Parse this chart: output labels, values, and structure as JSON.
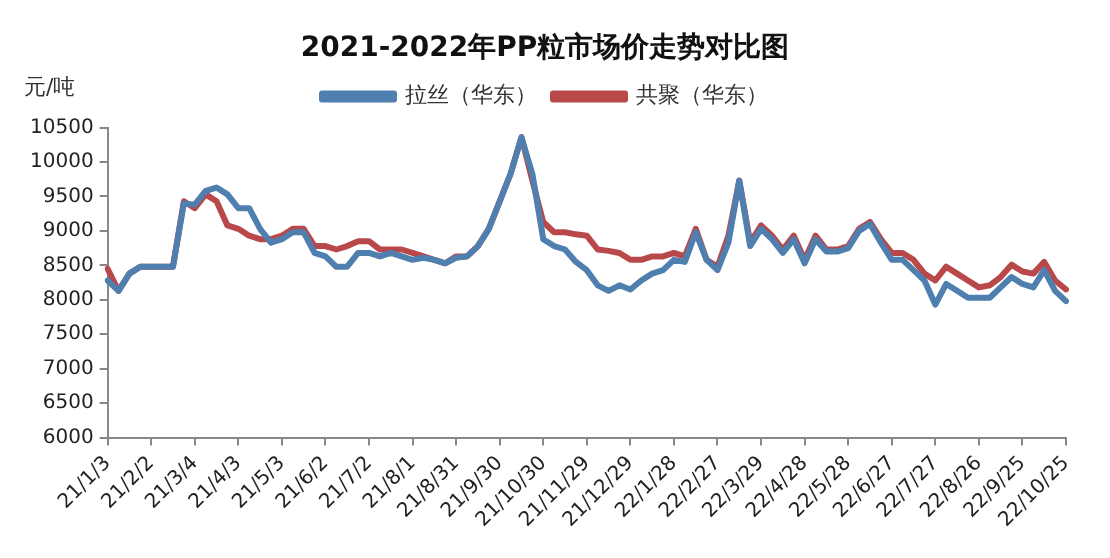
{
  "chart_data": {
    "type": "line",
    "title": "2021-2022年PP粒市场价走势对比图",
    "ylabel": "元/吨",
    "categories": [
      "21/1/3",
      null,
      null,
      null,
      "21/2/2",
      null,
      null,
      null,
      "21/3/4",
      null,
      null,
      null,
      "21/4/3",
      null,
      null,
      null,
      "21/5/3",
      null,
      null,
      null,
      "21/6/2",
      null,
      null,
      null,
      "21/7/2",
      null,
      null,
      null,
      "21/8/1",
      null,
      null,
      null,
      "21/8/31",
      null,
      null,
      null,
      "21/9/30",
      null,
      null,
      null,
      "21/10/30",
      null,
      null,
      null,
      "21/11/29",
      null,
      null,
      null,
      "21/12/29",
      null,
      null,
      null,
      "22/1/28",
      null,
      null,
      null,
      "22/2/27",
      null,
      null,
      null,
      "22/3/29",
      null,
      null,
      null,
      "22/4/28",
      null,
      null,
      null,
      "22/5/28",
      null,
      null,
      null,
      "22/6/27",
      null,
      null,
      null,
      "22/7/27",
      null,
      null,
      null,
      "22/8/26",
      null,
      null,
      null,
      "22/9/25",
      null,
      null,
      null,
      "22/10/25"
    ],
    "series": [
      {
        "name": "拉丝（华东）",
        "color": "#4f7fae",
        "values": [
          8280,
          8130,
          8380,
          8480,
          8480,
          8480,
          8480,
          9400,
          9380,
          9580,
          9630,
          9530,
          9330,
          9330,
          9030,
          8830,
          8880,
          8980,
          8980,
          8680,
          8630,
          8480,
          8480,
          8680,
          8680,
          8630,
          8680,
          8630,
          8580,
          8610,
          8580,
          8530,
          8610,
          8630,
          8780,
          9030,
          9430,
          9830,
          10360,
          9830,
          8880,
          8780,
          8730,
          8550,
          8430,
          8210,
          8130,
          8210,
          8150,
          8280,
          8380,
          8430,
          8580,
          8550,
          8980,
          8580,
          8430,
          8830,
          9730,
          8780,
          9030,
          8880,
          8680,
          8880,
          8530,
          8880,
          8700,
          8700,
          8750,
          9000,
          9100,
          8830,
          8580,
          8580,
          8430,
          8280,
          7930,
          8230,
          8130,
          8030,
          8030,
          8030,
          8180,
          8330,
          8230,
          8180,
          8430,
          8130,
          7980
        ]
      },
      {
        "name": "共聚（华东）",
        "color": "#b9484a",
        "values": [
          8450,
          8130,
          8380,
          8480,
          8480,
          8480,
          8480,
          9430,
          9330,
          9530,
          9430,
          9080,
          9030,
          8930,
          8880,
          8880,
          8930,
          9030,
          9030,
          8780,
          8780,
          8730,
          8780,
          8850,
          8850,
          8730,
          8730,
          8730,
          8680,
          8630,
          8580,
          8530,
          8630,
          8630,
          8780,
          9030,
          9430,
          9830,
          10360,
          9730,
          9130,
          8980,
          8980,
          8950,
          8930,
          8730,
          8710,
          8680,
          8580,
          8580,
          8630,
          8630,
          8680,
          8630,
          9030,
          8580,
          8480,
          8930,
          9730,
          8830,
          9080,
          8930,
          8730,
          8930,
          8580,
          8930,
          8730,
          8730,
          8780,
          9030,
          9130,
          8880,
          8680,
          8680,
          8580,
          8380,
          8280,
          8480,
          8380,
          8280,
          8180,
          8210,
          8330,
          8510,
          8410,
          8380,
          8550,
          8280,
          8150
        ]
      }
    ],
    "ylim": [
      6000,
      10500
    ],
    "yticks": [
      6000,
      6500,
      7000,
      7500,
      8000,
      8500,
      9000,
      9500,
      10000,
      10500
    ],
    "grid": false,
    "legend": "top",
    "marker": "none",
    "line_style": "solid"
  }
}
